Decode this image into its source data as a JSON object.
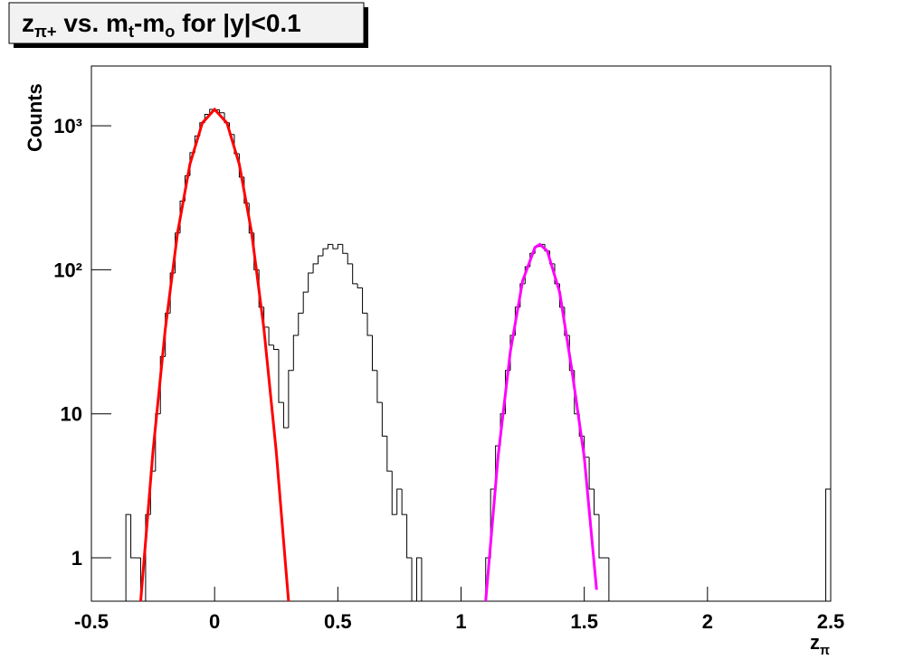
{
  "chart_data": {
    "type": "histogram",
    "title": [
      {
        "text": "z"
      },
      {
        "text": "π+",
        "sub": true
      },
      {
        "text": " vs. m"
      },
      {
        "text": "t",
        "sub": true
      },
      {
        "text": "-m"
      },
      {
        "text": "o",
        "sub": true
      },
      {
        "text": " for |y|<0.1"
      }
    ],
    "xlabel": [
      {
        "text": "z"
      },
      {
        "text": "π",
        "sub": true
      }
    ],
    "ylabel": "Counts",
    "log_y": true,
    "grid": false,
    "color": "#000000",
    "bins": [
      -0.5,
      -0.48,
      -0.46,
      -0.44,
      -0.42,
      -0.4,
      -0.38,
      -0.36,
      -0.34,
      -0.32,
      -0.3,
      -0.28,
      -0.26,
      -0.24,
      -0.22,
      -0.2,
      -0.18,
      -0.16,
      -0.14,
      -0.12,
      -0.1,
      -0.08,
      -0.06,
      -0.04,
      -0.02,
      0,
      0.02,
      0.04,
      0.06,
      0.08,
      0.1,
      0.12,
      0.14,
      0.16,
      0.18,
      0.2,
      0.22,
      0.24,
      0.26,
      0.28,
      0.3,
      0.32,
      0.34,
      0.36,
      0.38,
      0.4,
      0.42,
      0.44,
      0.46,
      0.48,
      0.5,
      0.52,
      0.54,
      0.56,
      0.58,
      0.6,
      0.62,
      0.64,
      0.66,
      0.68,
      0.7,
      0.72,
      0.74,
      0.76,
      0.78,
      0.8,
      0.82,
      0.84,
      0.86,
      0.88,
      0.9,
      0.92,
      0.94,
      0.96,
      0.98,
      1,
      1.02,
      1.04,
      1.06,
      1.08,
      1.1,
      1.12,
      1.14,
      1.16,
      1.18,
      1.2,
      1.22,
      1.24,
      1.26,
      1.28,
      1.3,
      1.32,
      1.34,
      1.36,
      1.38,
      1.4,
      1.42,
      1.44,
      1.46,
      1.48,
      1.5,
      1.52,
      1.54,
      1.56,
      1.58,
      1.6,
      1.62,
      1.64,
      1.66,
      1.68,
      1.7,
      1.72,
      1.74,
      1.76,
      1.78,
      1.8,
      1.82,
      1.84,
      1.86,
      1.88,
      1.9,
      1.92,
      1.94,
      1.96,
      1.98,
      2,
      2.02,
      2.04,
      2.06,
      2.08,
      2.1,
      2.12,
      2.14,
      2.16,
      2.18,
      2.2,
      2.22,
      2.24,
      2.26,
      2.28,
      2.3,
      2.32,
      2.34,
      2.36,
      2.38,
      2.4,
      2.42,
      2.44,
      2.46,
      2.48,
      2.5
    ],
    "values": [
      0,
      0,
      0,
      0,
      0,
      0,
      0,
      2,
      1,
      1,
      0,
      2,
      4,
      10,
      25,
      50,
      95,
      180,
      300,
      450,
      650,
      850,
      1050,
      1200,
      1300,
      1290,
      1230,
      1050,
      870,
      640,
      440,
      290,
      180,
      100,
      55,
      40,
      30,
      28,
      12,
      8,
      20,
      35,
      50,
      70,
      95,
      110,
      125,
      140,
      150,
      140,
      150,
      130,
      110,
      80,
      75,
      50,
      35,
      20,
      12,
      7,
      4,
      2,
      3,
      2,
      1,
      0,
      1,
      0,
      0,
      0,
      0,
      0,
      0,
      0,
      0,
      0,
      0,
      0,
      0,
      0,
      1,
      3,
      6,
      10,
      20,
      35,
      55,
      80,
      105,
      130,
      145,
      150,
      135,
      110,
      80,
      55,
      35,
      20,
      10,
      7,
      5,
      3,
      2,
      1,
      1,
      0,
      0,
      0,
      0,
      0,
      0,
      0,
      0,
      0,
      0,
      0,
      0,
      0,
      0,
      0,
      0,
      0,
      0,
      0,
      0,
      0,
      0,
      0,
      0,
      0,
      0,
      0,
      0,
      0,
      0,
      0,
      0,
      0,
      0,
      0,
      0,
      0,
      0,
      0,
      0,
      0,
      0,
      0,
      0,
      3
    ],
    "fits": [
      {
        "color": "#ff0000",
        "x": [
          -0.3,
          -0.25,
          -0.2,
          -0.15,
          -0.1,
          -0.05,
          0,
          0.05,
          0.1,
          0.15,
          0.2,
          0.25,
          0.3
        ],
        "values": [
          0.5,
          5.5,
          39,
          182,
          542,
          1045,
          1300,
          1045,
          542,
          182,
          39,
          5.5,
          0.5
        ]
      },
      {
        "color": "#ff00ff",
        "x": [
          1.1,
          1.15,
          1.2,
          1.25,
          1.3,
          1.32,
          1.35,
          1.4,
          1.45,
          1.5,
          1.55
        ],
        "values": [
          0.5,
          5,
          27,
          84,
          143,
          150,
          135,
          70,
          20,
          5,
          0.6
        ]
      }
    ],
    "xlim": [
      -0.5,
      2.5
    ],
    "xticks": [
      -0.5,
      0,
      0.5,
      1,
      1.5,
      2,
      2.5
    ],
    "ylim": [
      0.5,
      2600
    ],
    "yticks": [
      1,
      10,
      {
        "value": 100,
        "label": "10²"
      },
      {
        "value": 1000,
        "label": "10³"
      }
    ]
  }
}
